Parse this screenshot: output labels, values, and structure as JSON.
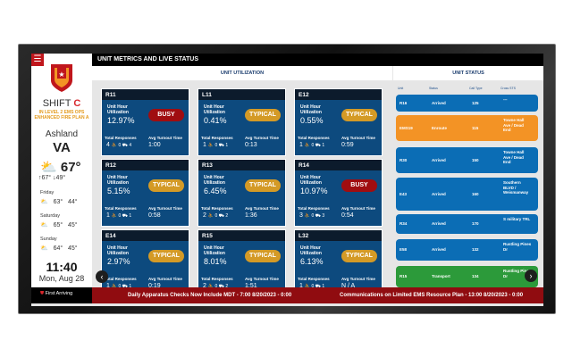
{
  "sidebar": {
    "shift_label": "SHIFT",
    "shift_letter": "C",
    "level": "IN LEVEL 2 EMS OPS",
    "plan": "ENHANCED FIRE PLAN A",
    "city": "Ashland",
    "state": "VA",
    "current_temp": "67°",
    "high": "↑67°",
    "low": "↓49°",
    "forecast": [
      {
        "day": "Friday",
        "hi": "63°",
        "lo": "44°"
      },
      {
        "day": "Saturday",
        "hi": "65°",
        "lo": "45°"
      },
      {
        "day": "Sunday",
        "hi": "64°",
        "lo": "45°"
      }
    ],
    "time": "11:40",
    "date": "Mon, Aug 28",
    "logo_text": "First Arriving"
  },
  "header": {
    "title": "UNIT METRICS AND LIVE STATUS",
    "utilization_title": "UNIT UTILIZATION",
    "status_title": "UNIT STATUS"
  },
  "labels": {
    "uhu": "Unit Hour Utilization",
    "total": "Total Responses",
    "avg": "Avg Turnout Time"
  },
  "colors": {
    "busy": "#a00d10",
    "typical": "#d49a26",
    "arrived": "#0b6db5",
    "enroute": "#f39325",
    "transport": "#2c9a3a"
  },
  "cards": [
    {
      "unit": "R11",
      "pct": "12.97%",
      "status": "BUSY",
      "total": "4",
      "a": "0",
      "b": "4",
      "avg": "1:00"
    },
    {
      "unit": "L11",
      "pct": "0.41%",
      "status": "TYPICAL",
      "total": "1",
      "a": "0",
      "b": "1",
      "avg": "0:13"
    },
    {
      "unit": "E12",
      "pct": "0.55%",
      "status": "TYPICAL",
      "total": "1",
      "a": "0",
      "b": "1",
      "avg": "0:59"
    },
    {
      "unit": "R12",
      "pct": "5.15%",
      "status": "TYPICAL",
      "total": "1",
      "a": "0",
      "b": "1",
      "avg": "0:58"
    },
    {
      "unit": "R13",
      "pct": "6.45%",
      "status": "TYPICAL",
      "total": "2",
      "a": "0",
      "b": "2",
      "avg": "1:36"
    },
    {
      "unit": "R14",
      "pct": "10.97%",
      "status": "BUSY",
      "total": "3",
      "a": "0",
      "b": "3",
      "avg": "0:54"
    },
    {
      "unit": "E14",
      "pct": "2.97%",
      "status": "TYPICAL",
      "total": "1",
      "a": "0",
      "b": "1",
      "avg": "0:19"
    },
    {
      "unit": "R15",
      "pct": "8.01%",
      "status": "TYPICAL",
      "total": "2",
      "a": "0",
      "b": "2",
      "avg": "1:51"
    },
    {
      "unit": "L32",
      "pct": "6.13%",
      "status": "TYPICAL",
      "total": "1",
      "a": "0",
      "b": "1",
      "avg": "N / A"
    }
  ],
  "status_columns": [
    "Unit",
    "Status",
    "Call Type",
    "Cross STS"
  ],
  "status_rows": [
    {
      "unit": "R16",
      "status": "Arrived",
      "call": "125",
      "cross": "---"
    },
    {
      "unit": "EMS19",
      "status": "Enroute",
      "call": "115",
      "cross": "Towne Hall Ave / Dead End"
    },
    {
      "unit": "R30",
      "status": "Arrived",
      "call": "150",
      "cross": "Towne Hall Ave / Dead End"
    },
    {
      "unit": "E43",
      "status": "Arrived",
      "call": "160",
      "cross": "Southern BLVD / Weismanway"
    },
    {
      "unit": "R34",
      "status": "Arrived",
      "call": "170",
      "cross": "S military TRL"
    },
    {
      "unit": "E58",
      "status": "Arrived",
      "call": "132",
      "cross": "Rustling Pines Dr"
    },
    {
      "unit": "R15",
      "status": "Transport",
      "call": "134",
      "cross": "Rustling Pines Dr"
    }
  ],
  "ticker": [
    "Daily Apparatus Checks Now Include MDT - 7:00 8/20/2023 - 0:00",
    "Communications on Limited EMS Resource Plan - 13:00 8/20/2023 - 0:00"
  ]
}
